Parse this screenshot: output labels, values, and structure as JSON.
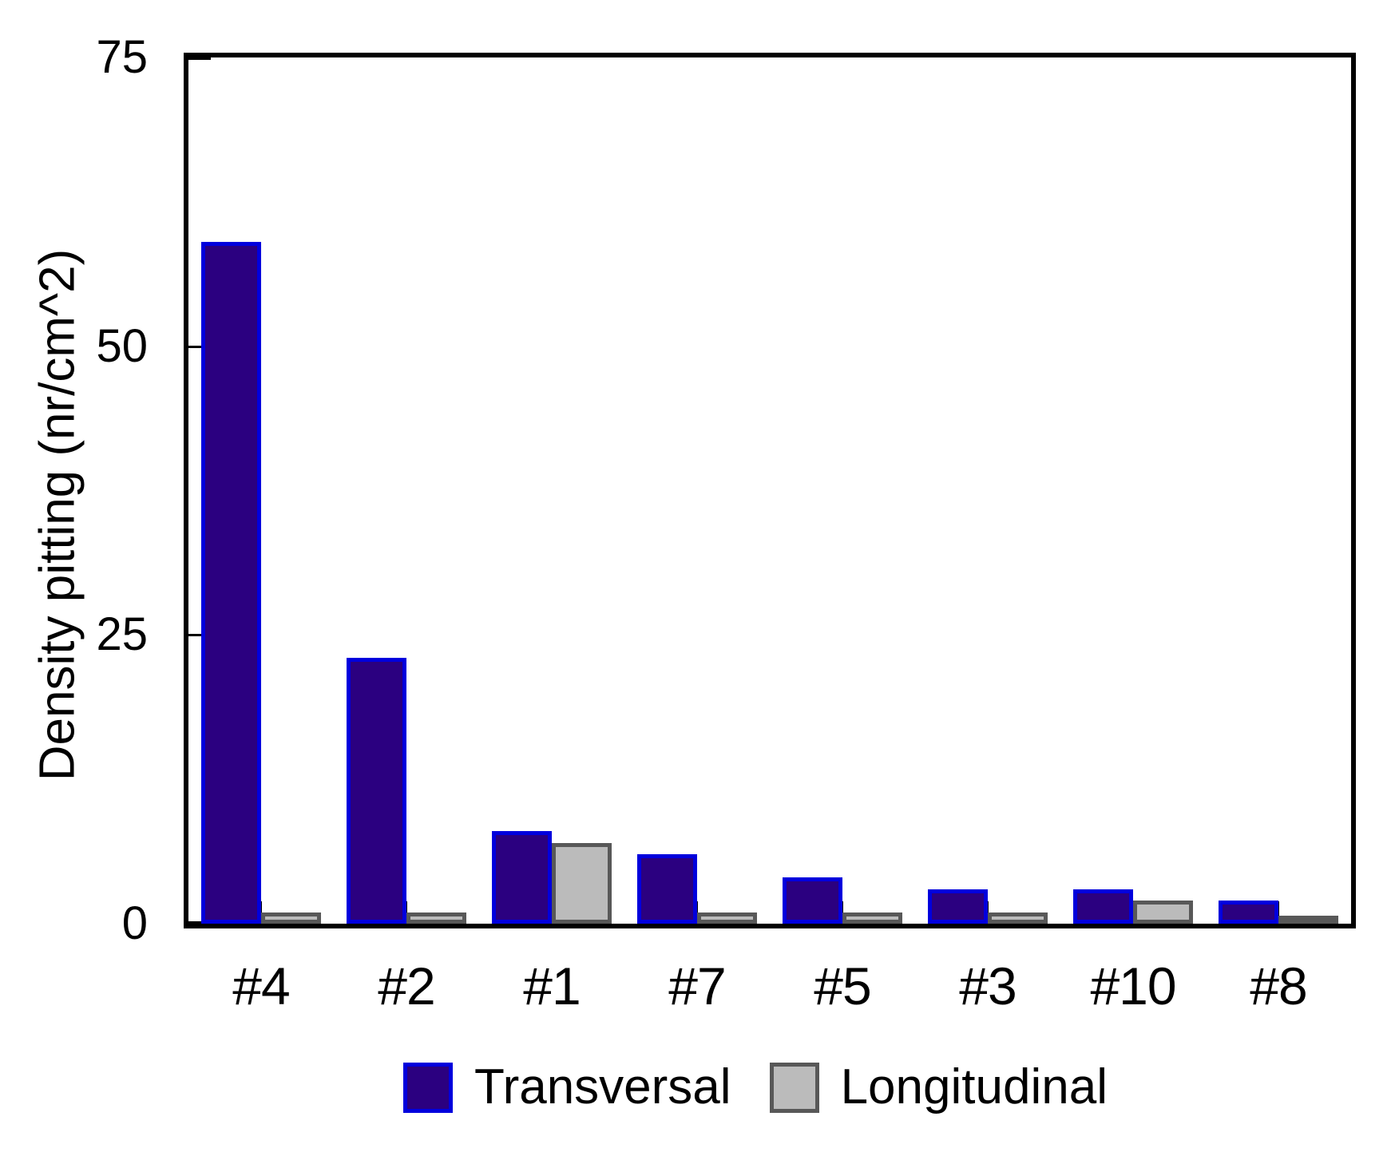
{
  "chart_data": {
    "type": "bar",
    "title": "",
    "ylabel": "Density pitting (nr/cm^2)",
    "xlabel": "",
    "categories": [
      "#4",
      "#2",
      "#1",
      "#7",
      "#5",
      "#3",
      "#10",
      "#8"
    ],
    "series": [
      {
        "name": "Transversal",
        "fill_color": "#2B0080",
        "border_color": "#0000DD",
        "values": [
          59,
          23,
          8,
          6,
          4,
          3,
          3,
          2
        ]
      },
      {
        "name": "Longitudinal",
        "fill_color": "#BBBBBB",
        "border_color": "#585858",
        "values": [
          1,
          1,
          7,
          1,
          1,
          1,
          2,
          0.3
        ]
      }
    ],
    "ylim": [
      0,
      75
    ],
    "yticks": [
      0,
      25,
      50,
      75
    ],
    "grid": false,
    "legend_position": "bottom",
    "axis_color": "#000000",
    "background_color": "#FFFFFF"
  }
}
